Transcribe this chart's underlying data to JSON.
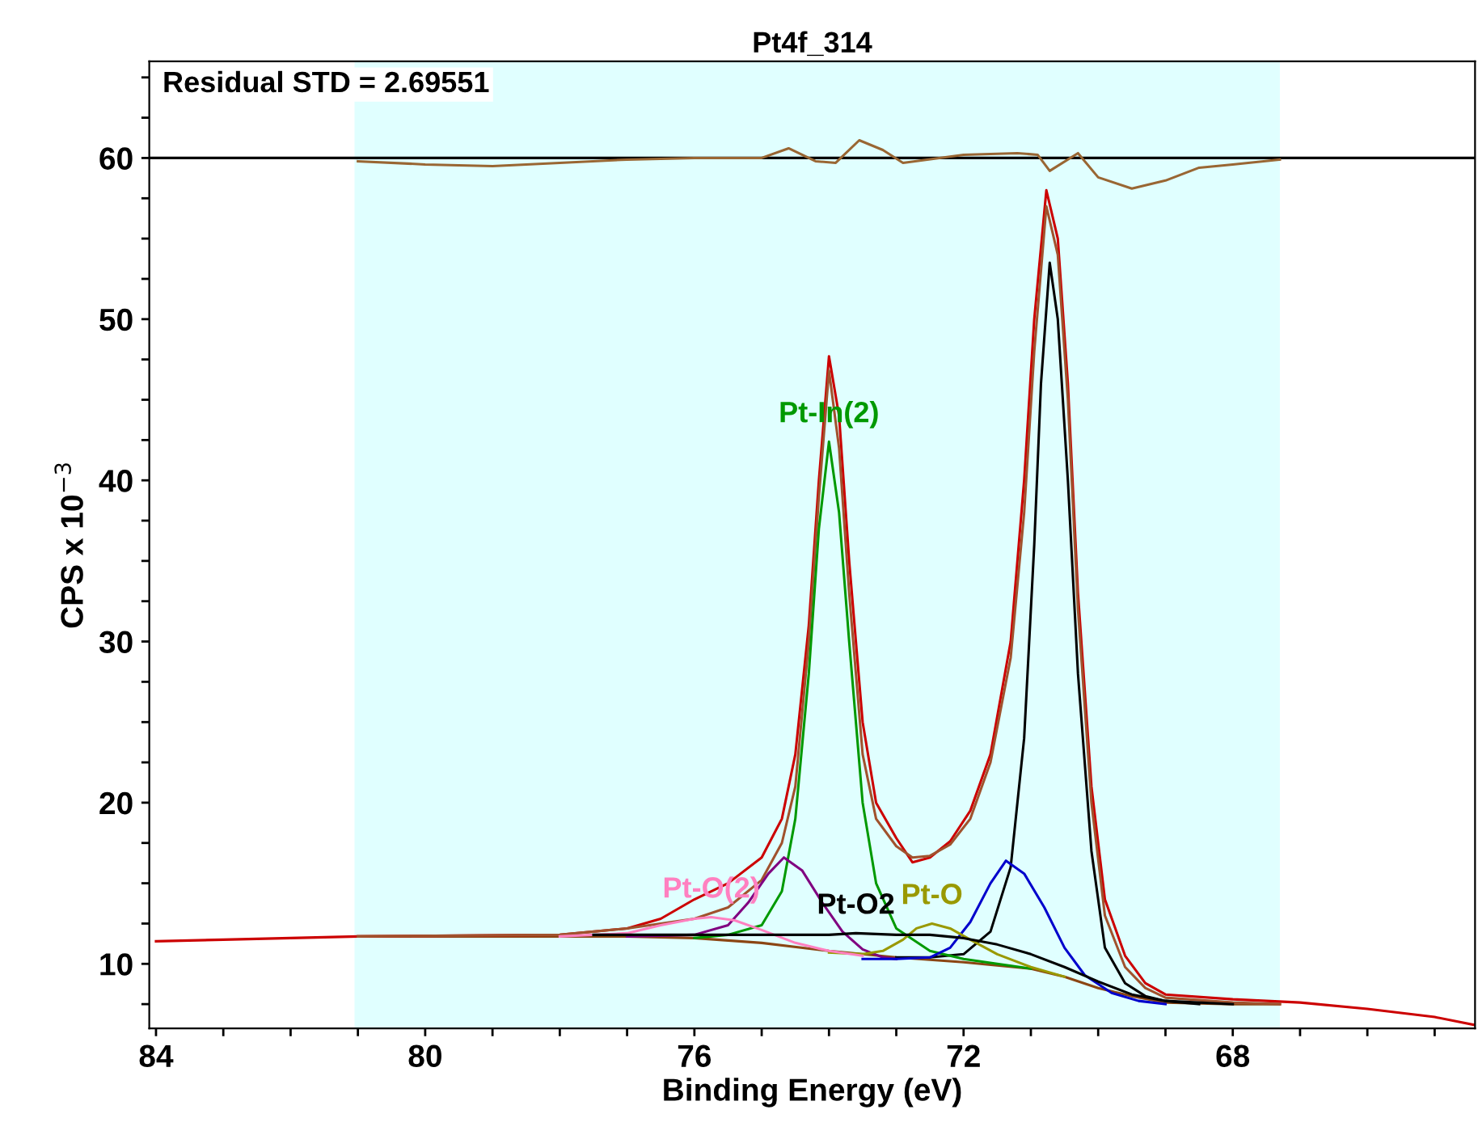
{
  "chart_data": {
    "type": "line",
    "title": "Pt4f_314",
    "xlabel": "Binding Energy (eV)",
    "ylabel": "CPS x 10$^{−3}$",
    "annotations": [
      "Residual STD = 2.69551"
    ],
    "xlim": [
      84.1,
      64.4
    ],
    "ylim": [
      6,
      66
    ],
    "xticks": [
      84,
      {
        "value": 83,
        "label": null
      },
      {
        "value": 82,
        "label": null
      },
      {
        "value": 81,
        "label": null
      },
      80,
      {
        "value": 79,
        "label": null
      },
      {
        "value": 78,
        "label": null
      },
      {
        "value": 77,
        "label": null
      },
      76,
      {
        "value": 75,
        "label": null
      },
      {
        "value": 74,
        "label": null
      },
      {
        "value": 73,
        "label": null
      },
      72,
      {
        "value": 71,
        "label": null
      },
      {
        "value": 70,
        "label": null
      },
      {
        "value": 69,
        "label": null
      },
      68,
      {
        "value": 67,
        "label": null
      },
      {
        "value": 66,
        "label": null
      },
      {
        "value": 65,
        "label": null
      }
    ],
    "yticks": [
      {
        "value": 7.5,
        "label": null
      },
      10,
      {
        "value": 12.5,
        "label": null
      },
      {
        "value": 15,
        "label": null
      },
      {
        "value": 17.5,
        "label": null
      },
      20,
      {
        "value": 22.5,
        "label": null
      },
      {
        "value": 25,
        "label": null
      },
      {
        "value": 27.5,
        "label": null
      },
      30,
      {
        "value": 32.5,
        "label": null
      },
      {
        "value": 35,
        "label": null
      },
      {
        "value": 37.5,
        "label": null
      },
      40,
      {
        "value": 42.5,
        "label": null
      },
      {
        "value": 45,
        "label": null
      },
      {
        "value": 47.5,
        "label": null
      },
      50,
      {
        "value": 52.5,
        "label": null
      },
      {
        "value": 55,
        "label": null
      },
      {
        "value": 57.5,
        "label": null
      },
      60,
      {
        "value": 62.5,
        "label": null
      },
      {
        "value": 65,
        "label": null
      }
    ],
    "grid": false,
    "legend": false,
    "bands": [
      {
        "axis": "x",
        "from": 81.05,
        "to": 67.3,
        "color": "#e0ffff"
      }
    ],
    "ref_lines": [
      {
        "axis": "y",
        "value": 60,
        "color": "#000000"
      }
    ],
    "series": [
      {
        "color": "#996633",
        "x": [
          81,
          80,
          79,
          78,
          77,
          76,
          75,
          74.6,
          74.2,
          73.9,
          73.55,
          73.2,
          72.9,
          72,
          71.2,
          70.9,
          70.72,
          70.3,
          70.0,
          69.5,
          69,
          68.5,
          68,
          67.3
        ],
        "values": [
          59.8,
          59.6,
          59.5,
          59.7,
          59.9,
          60.0,
          60.0,
          60.6,
          59.8,
          59.7,
          61.1,
          60.5,
          59.7,
          60.2,
          60.3,
          60.2,
          59.2,
          60.3,
          58.8,
          58.1,
          58.6,
          59.4,
          59.6,
          59.9
        ]
      },
      {
        "color": "#8b4513",
        "x": [
          81,
          77,
          76,
          75,
          74,
          73,
          72,
          71,
          70.5,
          70,
          69.5,
          69,
          68,
          67.3
        ],
        "values": [
          11.7,
          11.7,
          11.6,
          11.3,
          10.8,
          10.4,
          10.1,
          9.7,
          9.2,
          8.5,
          8.0,
          7.6,
          7.5,
          7.5
        ]
      },
      {
        "color": "#cc0000",
        "x": [
          84,
          83,
          82,
          81,
          78,
          77,
          76.5,
          76,
          75.5,
          75,
          74.7,
          74.5,
          74.3,
          74.15,
          74.0,
          73.85,
          73.7,
          73.5,
          73.3,
          73.0,
          72.76,
          72.5,
          72.2,
          71.9,
          71.6,
          71.3,
          71.1,
          70.95,
          70.77,
          70.6,
          70.45,
          70.3,
          70.1,
          69.9,
          69.6,
          69.3,
          69,
          68,
          67,
          66,
          65,
          64.4
        ],
        "values": [
          11.4,
          11.5,
          11.6,
          11.7,
          11.8,
          12.2,
          12.8,
          14.0,
          15.0,
          16.6,
          19,
          23,
          31,
          40,
          47.7,
          44,
          35,
          25,
          20,
          17.8,
          16.3,
          16.6,
          17.6,
          19.5,
          23,
          30,
          40,
          50,
          58,
          55,
          46,
          33,
          21,
          14,
          10.5,
          8.8,
          8.1,
          7.8,
          7.6,
          7.2,
          6.7,
          6.2
        ]
      },
      {
        "color": "#a0522d",
        "x": [
          81,
          78,
          77,
          76,
          75.5,
          75,
          74.7,
          74.5,
          74.3,
          74.15,
          74.0,
          73.85,
          73.7,
          73.5,
          73.3,
          73.0,
          72.76,
          72.5,
          72.2,
          71.9,
          71.6,
          71.3,
          71.1,
          70.95,
          70.77,
          70.6,
          70.45,
          70.3,
          70.1,
          69.9,
          69.6,
          69.3,
          69,
          68,
          67.3
        ],
        "values": [
          11.7,
          11.8,
          12.2,
          12.8,
          13.5,
          15.2,
          17.5,
          21,
          30,
          39,
          46.8,
          42,
          33,
          23,
          19,
          17.3,
          16.6,
          16.7,
          17.4,
          19,
          22.5,
          29,
          38,
          48,
          57,
          54,
          45,
          32,
          20,
          13,
          9.8,
          8.5,
          7.9,
          7.6,
          7.5
        ]
      },
      {
        "color": "#000000",
        "x": [
          73,
          72.5,
          72,
          71.6,
          71.3,
          71.1,
          70.95,
          70.85,
          70.72,
          70.6,
          70.45,
          70.3,
          70.1,
          69.9,
          69.6,
          69.3,
          69,
          68
        ],
        "values": [
          10.4,
          10.4,
          10.6,
          12,
          16,
          24,
          36,
          46,
          53.5,
          50,
          40,
          28,
          17,
          11,
          8.8,
          8.0,
          7.7,
          7.5
        ]
      },
      {
        "name": "Pt-In(2)",
        "color": "#009900",
        "x": [
          76,
          75.5,
          75,
          74.7,
          74.5,
          74.3,
          74.15,
          74.0,
          73.85,
          73.7,
          73.5,
          73.3,
          73.0,
          72.5,
          72,
          71.5,
          71
        ],
        "values": [
          11.6,
          11.8,
          12.4,
          14.5,
          19,
          28,
          37,
          42.4,
          38,
          30,
          20,
          15,
          12.2,
          10.8,
          10.3,
          10.0,
          9.7
        ]
      },
      {
        "color": "#800080",
        "x": [
          77,
          76,
          75.5,
          75.2,
          74.9,
          74.67,
          74.4,
          74.1,
          73.8,
          73.5,
          73.2,
          73
        ],
        "values": [
          11.7,
          11.8,
          12.4,
          13.8,
          15.6,
          16.6,
          15.8,
          13.8,
          12.0,
          10.9,
          10.4,
          10.3
        ]
      },
      {
        "color": "#0000cc",
        "x": [
          73.5,
          73,
          72.5,
          72.2,
          71.9,
          71.6,
          71.37,
          71.1,
          70.8,
          70.5,
          70.2,
          69.8,
          69.4,
          69
        ],
        "values": [
          10.3,
          10.3,
          10.4,
          11,
          12.6,
          15,
          16.4,
          15.6,
          13.5,
          11,
          9.3,
          8.2,
          7.7,
          7.5
        ]
      },
      {
        "name": "Pt-O",
        "color": "#999900",
        "x": [
          74,
          73.5,
          73.2,
          72.9,
          72.7,
          72.47,
          72.2,
          71.9,
          71.5,
          71,
          70.5
        ],
        "values": [
          10.7,
          10.6,
          10.8,
          11.5,
          12.2,
          12.5,
          12.2,
          11.5,
          10.6,
          9.8,
          9.2
        ]
      },
      {
        "name": "Pt-O(2)",
        "color": "#ff80c0",
        "x": [
          78,
          77,
          76.5,
          76,
          75.75,
          75.4,
          75,
          74.5,
          74,
          73.5
        ],
        "values": [
          11.7,
          11.9,
          12.4,
          12.8,
          12.9,
          12.7,
          12.1,
          11.3,
          10.8,
          10.5
        ]
      },
      {
        "name": "Pt-O2",
        "color": "#000000",
        "x": [
          77.5,
          76,
          75,
          74,
          73.6,
          73,
          72.5,
          72,
          71.5,
          71,
          70.5,
          70,
          69.5,
          69,
          68.5
        ],
        "values": [
          11.8,
          11.8,
          11.8,
          11.8,
          11.9,
          11.8,
          11.8,
          11.6,
          11.2,
          10.6,
          9.8,
          8.9,
          8.1,
          7.7,
          7.5
        ]
      }
    ]
  }
}
